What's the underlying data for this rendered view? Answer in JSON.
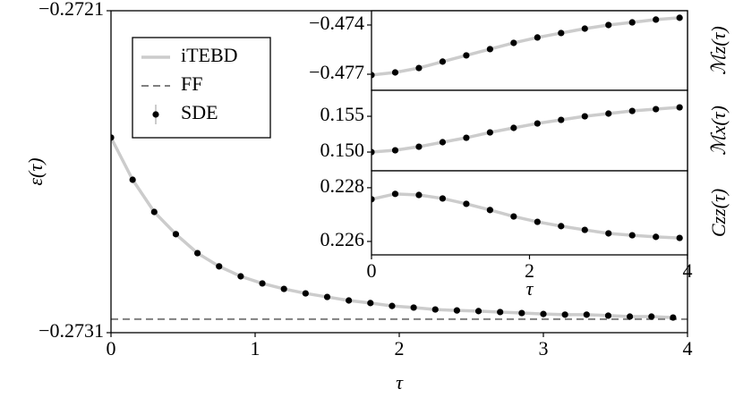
{
  "chart_data": [
    {
      "type": "line",
      "xlabel": "τ",
      "ylabel": "ε(τ)",
      "legend": "upper left",
      "xlim": [
        0,
        4
      ],
      "xticks": [
        0,
        1,
        2,
        3,
        4
      ],
      "ylim": [
        -0.2731,
        -0.2721
      ],
      "yticks": [
        {
          "value": -0.2731,
          "label": "−0.2731"
        },
        {
          "value": -0.2721,
          "label": "−0.2721"
        }
      ],
      "x": [
        0,
        0.15,
        0.3,
        0.45,
        0.6,
        0.75,
        0.9,
        1.05,
        1.2,
        1.35,
        1.5,
        1.65,
        1.8,
        1.95,
        2.1,
        2.25,
        2.4,
        2.55,
        2.7,
        2.85,
        3.0,
        3.15,
        3.3,
        3.45,
        3.6,
        3.75,
        3.9
      ],
      "series": [
        {
          "name": "iTEBD",
          "color": "#cccccc",
          "style": "solid",
          "values": [
            -0.272494,
            -0.272625,
            -0.272725,
            -0.272794,
            -0.272853,
            -0.272894,
            -0.272925,
            -0.272947,
            -0.272964,
            -0.272978,
            -0.272989,
            -0.273,
            -0.273008,
            -0.273017,
            -0.273022,
            -0.273028,
            -0.273031,
            -0.273033,
            -0.273036,
            -0.273039,
            -0.273042,
            -0.273044,
            -0.273044,
            -0.273047,
            -0.27305,
            -0.27305,
            -0.273053
          ]
        },
        {
          "name": "FF",
          "color": "#808080",
          "style": "dashed",
          "x": [
            0,
            4
          ],
          "values": [
            -0.273058,
            -0.273058
          ]
        },
        {
          "name": "SDE",
          "color": "#000000",
          "style": "markers",
          "values": [
            -0.272494,
            -0.272625,
            -0.272725,
            -0.272794,
            -0.272853,
            -0.272894,
            -0.272925,
            -0.272947,
            -0.272964,
            -0.272978,
            -0.272989,
            -0.273,
            -0.273008,
            -0.273017,
            -0.273022,
            -0.273028,
            -0.273031,
            -0.273033,
            -0.273036,
            -0.273039,
            -0.273042,
            -0.273044,
            -0.273044,
            -0.273047,
            -0.27305,
            -0.27305,
            -0.273053
          ]
        }
      ]
    },
    {
      "type": "line",
      "ylabel": "ℳz(τ)",
      "xlim": [
        0,
        4
      ],
      "ylim": [
        -0.47798,
        -0.47313
      ],
      "yticks": [
        {
          "value": -0.477,
          "label": "−0.477"
        },
        {
          "value": -0.474,
          "label": "−0.474"
        }
      ],
      "x": [
        0,
        0.3,
        0.6,
        0.9,
        1.2,
        1.5,
        1.8,
        2.1,
        2.4,
        2.7,
        3.0,
        3.3,
        3.6,
        3.9
      ],
      "series": [
        {
          "color": "#cccccc",
          "style": "solid",
          "values": [
            -0.47705,
            -0.47689,
            -0.47662,
            -0.47623,
            -0.47585,
            -0.47547,
            -0.47509,
            -0.47476,
            -0.47449,
            -0.47422,
            -0.474,
            -0.47384,
            -0.47367,
            -0.47356
          ]
        },
        {
          "color": "#000000",
          "style": "markers",
          "values": [
            -0.47705,
            -0.47689,
            -0.47662,
            -0.47623,
            -0.47585,
            -0.47547,
            -0.47509,
            -0.47476,
            -0.47449,
            -0.47422,
            -0.474,
            -0.47384,
            -0.47367,
            -0.47356
          ]
        }
      ]
    },
    {
      "type": "line",
      "ylabel": "ℳx(τ)",
      "xlim": [
        0,
        4
      ],
      "ylim": [
        0.14738,
        0.15863
      ],
      "yticks": [
        {
          "value": 0.15,
          "label": "0.150"
        },
        0.155
      ],
      "x": [
        0,
        0.3,
        0.6,
        0.9,
        1.2,
        1.5,
        1.8,
        2.1,
        2.4,
        2.7,
        3.0,
        3.3,
        3.6,
        3.9
      ],
      "series": [
        {
          "color": "#cccccc",
          "style": "solid",
          "values": [
            0.15,
            0.15025,
            0.15075,
            0.15138,
            0.152,
            0.15275,
            0.15338,
            0.154,
            0.1545,
            0.155,
            0.15538,
            0.15575,
            0.156,
            0.15625
          ]
        },
        {
          "color": "#000000",
          "style": "markers",
          "values": [
            0.15,
            0.15025,
            0.15075,
            0.15138,
            0.152,
            0.15275,
            0.15338,
            0.154,
            0.1545,
            0.155,
            0.15538,
            0.15575,
            0.156,
            0.15625
          ]
        }
      ]
    },
    {
      "type": "line",
      "xlabel": "τ",
      "ylabel": "Czz(τ)",
      "xlim": [
        0,
        4
      ],
      "xticks": [
        0,
        2,
        4
      ],
      "ylim": [
        0.2255,
        0.22863
      ],
      "yticks": [
        0.226,
        0.228
      ],
      "x": [
        0,
        0.3,
        0.6,
        0.9,
        1.2,
        1.5,
        1.8,
        2.1,
        2.4,
        2.7,
        3.0,
        3.3,
        3.6,
        3.9
      ],
      "series": [
        {
          "color": "#cccccc",
          "style": "solid",
          "values": [
            0.22757,
            0.22777,
            0.22773,
            0.2276,
            0.2274,
            0.22717,
            0.22693,
            0.22673,
            0.22657,
            0.22643,
            0.2263,
            0.22623,
            0.22617,
            0.22613
          ]
        },
        {
          "color": "#000000",
          "style": "markers",
          "values": [
            0.22757,
            0.22777,
            0.22773,
            0.2276,
            0.2274,
            0.22717,
            0.22693,
            0.22673,
            0.22657,
            0.22643,
            0.2263,
            0.22623,
            0.22617,
            0.22613
          ]
        }
      ]
    }
  ]
}
